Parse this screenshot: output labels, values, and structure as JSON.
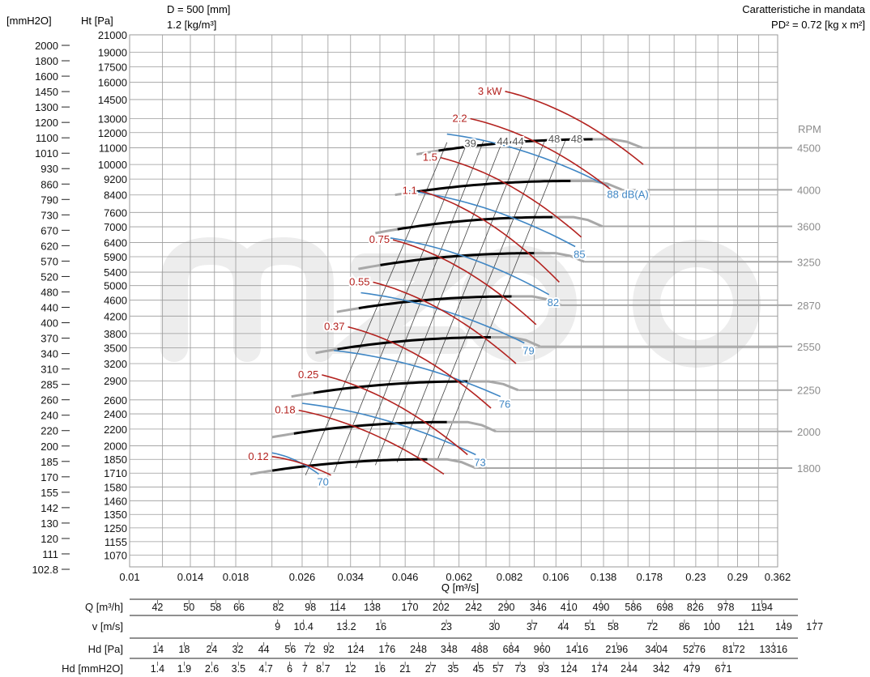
{
  "chart_data": {
    "type": "line",
    "header": {
      "diameter": "D = 500 [mm]",
      "density": "1.2 [kg/m³]",
      "title": "Caratteristiche in mandata",
      "pd2": "PD² = 0.72 [kg x m²]",
      "left_unit": "[mmH2O]",
      "right_unit": "Ht [Pa]",
      "rpm_label": "RPM",
      "xlabel": "Q [m³/s]"
    },
    "x_scale": "log",
    "y_scale": "log",
    "xlim": [
      0.01,
      0.362
    ],
    "ylim": [
      1000,
      21000
    ],
    "x_ticks": [
      {
        "v": 0.01,
        "label": "0.01"
      },
      {
        "v": 0.014,
        "label": "0.014"
      },
      {
        "v": 0.018,
        "label": "0.018"
      },
      {
        "v": 0.026,
        "label": "0.026"
      },
      {
        "v": 0.034,
        "label": "0.034"
      },
      {
        "v": 0.046,
        "label": "0.046"
      },
      {
        "v": 0.062,
        "label": "0.062"
      },
      {
        "v": 0.082,
        "label": "0.082"
      },
      {
        "v": 0.106,
        "label": "0.106"
      },
      {
        "v": 0.138,
        "label": "0.138"
      },
      {
        "v": 0.178,
        "label": "0.178"
      },
      {
        "v": 0.23,
        "label": "0.23"
      },
      {
        "v": 0.29,
        "label": "0.29"
      },
      {
        "v": 0.362,
        "label": "0.362"
      }
    ],
    "x_grid": [
      0.01,
      0.012,
      0.014,
      0.016,
      0.018,
      0.022,
      0.026,
      0.03,
      0.034,
      0.04,
      0.046,
      0.054,
      0.062,
      0.072,
      0.082,
      0.094,
      0.106,
      0.122,
      0.138,
      0.158,
      0.178,
      0.204,
      0.23,
      0.26,
      0.29,
      0.326,
      0.362
    ],
    "y_ticks_pa": [
      {
        "v": 21000,
        "label": "21000"
      },
      {
        "v": 19000,
        "label": "19000"
      },
      {
        "v": 17500,
        "label": "17500"
      },
      {
        "v": 16000,
        "label": "16000"
      },
      {
        "v": 14500,
        "label": "14500"
      },
      {
        "v": 13000,
        "label": "13000"
      },
      {
        "v": 12000,
        "label": "12000"
      },
      {
        "v": 11000,
        "label": "11000"
      },
      {
        "v": 10000,
        "label": "10000"
      },
      {
        "v": 9200,
        "label": "9200"
      },
      {
        "v": 8400,
        "label": "8400"
      },
      {
        "v": 7600,
        "label": "7600"
      },
      {
        "v": 7000,
        "label": "7000"
      },
      {
        "v": 6400,
        "label": "6400"
      },
      {
        "v": 5900,
        "label": "5900"
      },
      {
        "v": 5400,
        "label": "5400"
      },
      {
        "v": 5000,
        "label": "5000"
      },
      {
        "v": 4600,
        "label": "4600"
      },
      {
        "v": 4200,
        "label": "4200"
      },
      {
        "v": 3800,
        "label": "3800"
      },
      {
        "v": 3500,
        "label": "3500"
      },
      {
        "v": 3200,
        "label": "3200"
      },
      {
        "v": 2900,
        "label": "2900"
      },
      {
        "v": 2600,
        "label": "2600"
      },
      {
        "v": 2400,
        "label": "2400"
      },
      {
        "v": 2200,
        "label": "2200"
      },
      {
        "v": 2000,
        "label": "2000"
      },
      {
        "v": 1850,
        "label": "1850"
      },
      {
        "v": 1710,
        "label": "1710"
      },
      {
        "v": 1580,
        "label": "1580"
      },
      {
        "v": 1460,
        "label": "1460"
      },
      {
        "v": 1350,
        "label": "1350"
      },
      {
        "v": 1250,
        "label": "1250"
      },
      {
        "v": 1155,
        "label": "1155"
      },
      {
        "v": 1070,
        "label": "1070"
      }
    ],
    "y_ticks_mmh2o": [
      {
        "v": 2000,
        "label": "2000"
      },
      {
        "v": 1800,
        "label": "1800"
      },
      {
        "v": 1600,
        "label": "1600"
      },
      {
        "v": 1450,
        "label": "1450"
      },
      {
        "v": 1300,
        "label": "1300"
      },
      {
        "v": 1200,
        "label": "1200"
      },
      {
        "v": 1100,
        "label": "1100"
      },
      {
        "v": 1010,
        "label": "1010"
      },
      {
        "v": 930,
        "label": "930"
      },
      {
        "v": 860,
        "label": "860"
      },
      {
        "v": 790,
        "label": "790"
      },
      {
        "v": 730,
        "label": "730"
      },
      {
        "v": 670,
        "label": "670"
      },
      {
        "v": 620,
        "label": "620"
      },
      {
        "v": 570,
        "label": "570"
      },
      {
        "v": 520,
        "label": "520"
      },
      {
        "v": 480,
        "label": "480"
      },
      {
        "v": 440,
        "label": "440"
      },
      {
        "v": 400,
        "label": "400"
      },
      {
        "v": 370,
        "label": "370"
      },
      {
        "v": 340,
        "label": "340"
      },
      {
        "v": 310,
        "label": "310"
      },
      {
        "v": 285,
        "label": "285"
      },
      {
        "v": 260,
        "label": "260"
      },
      {
        "v": 240,
        "label": "240"
      },
      {
        "v": 220,
        "label": "220"
      },
      {
        "v": 200,
        "label": "200"
      },
      {
        "v": 185,
        "label": "185"
      },
      {
        "v": 170,
        "label": "170"
      },
      {
        "v": 155,
        "label": "155"
      },
      {
        "v": 142,
        "label": "142"
      },
      {
        "v": 130,
        "label": "130"
      },
      {
        "v": 120,
        "label": "120"
      },
      {
        "v": 111,
        "label": "111"
      },
      {
        "v": 102.8,
        "label": "102.8"
      }
    ],
    "fan_curves": [
      {
        "rpm": "4500",
        "q0": 0.049,
        "p0": 10600,
        "qpk": 0.13,
        "ppk": 11550,
        "qpeak_end": 0.145,
        "qend": 0.171,
        "pend": 11000
      },
      {
        "rpm": "4000",
        "q0": 0.0435,
        "p0": 8400,
        "qpk": 0.115,
        "ppk": 9100,
        "qpeak_end": 0.13,
        "qend": 0.153,
        "pend": 8650
      },
      {
        "rpm": "3600",
        "q0": 0.039,
        "p0": 6750,
        "qpk": 0.104,
        "ppk": 7400,
        "qpeak_end": 0.117,
        "qend": 0.137,
        "pend": 7020
      },
      {
        "rpm": "3250",
        "q0": 0.0355,
        "p0": 5500,
        "qpk": 0.094,
        "ppk": 6020,
        "qpeak_end": 0.106,
        "qend": 0.124,
        "pend": 5730
      },
      {
        "rpm": "2870",
        "q0": 0.0315,
        "p0": 4300,
        "qpk": 0.083,
        "ppk": 4700,
        "qpeak_end": 0.093,
        "qend": 0.109,
        "pend": 4470
      },
      {
        "rpm": "2550",
        "q0": 0.028,
        "p0": 3400,
        "qpk": 0.074,
        "ppk": 3720,
        "qpeak_end": 0.083,
        "qend": 0.097,
        "pend": 3530
      },
      {
        "rpm": "2250",
        "q0": 0.0245,
        "p0": 2650,
        "qpk": 0.065,
        "ppk": 2890,
        "qpeak_end": 0.073,
        "qend": 0.086,
        "pend": 2750
      },
      {
        "rpm": "2000",
        "q0": 0.022,
        "p0": 2100,
        "qpk": 0.058,
        "ppk": 2290,
        "qpeak_end": 0.065,
        "qend": 0.076,
        "pend": 2170
      },
      {
        "rpm": "1800",
        "q0": 0.0195,
        "p0": 1700,
        "qpk": 0.052,
        "ppk": 1850,
        "qpeak_end": 0.058,
        "qend": 0.068,
        "pend": 1760
      }
    ],
    "power_curves": [
      {
        "label": "3 kW",
        "q0": 0.08,
        "p0": 15200,
        "q1": 0.172,
        "p1": 10000
      },
      {
        "label": "2.2",
        "q0": 0.066,
        "p0": 13000,
        "q1": 0.145,
        "p1": 8600
      },
      {
        "label": "1.5",
        "q0": 0.056,
        "p0": 10400,
        "q1": 0.122,
        "p1": 6600
      },
      {
        "label": "1.1",
        "q0": 0.05,
        "p0": 8600,
        "q1": 0.108,
        "p1": 5100
      },
      {
        "label": "0.75",
        "q0": 0.043,
        "p0": 6500,
        "q1": 0.095,
        "p1": 4000
      },
      {
        "label": "0.55",
        "q0": 0.0385,
        "p0": 5100,
        "q1": 0.085,
        "p1": 3200
      },
      {
        "label": "0.37",
        "q0": 0.0335,
        "p0": 3950,
        "q1": 0.074,
        "p1": 2480
      },
      {
        "label": "0.25",
        "q0": 0.029,
        "p0": 3000,
        "q1": 0.065,
        "p1": 1900
      },
      {
        "label": "0.18",
        "q0": 0.0255,
        "p0": 2450,
        "q1": 0.057,
        "p1": 1700
      },
      {
        "label": "0.12",
        "q0": 0.022,
        "p0": 1880,
        "q1": 0.0305,
        "p1": 1690
      }
    ],
    "noise_curves": [
      {
        "label": "88 dB(A)",
        "q0": 0.058,
        "p0": 11900,
        "q1": 0.142,
        "p1": 8800
      },
      {
        "label": "85",
        "q0": 0.047,
        "p0": 8600,
        "q1": 0.118,
        "p1": 6250
      },
      {
        "label": "82",
        "q0": 0.041,
        "p0": 6600,
        "q1": 0.102,
        "p1": 4750
      },
      {
        "label": "79",
        "q0": 0.036,
        "p0": 4800,
        "q1": 0.089,
        "p1": 3600
      },
      {
        "label": "76",
        "q0": 0.031,
        "p0": 3450,
        "q1": 0.078,
        "p1": 2650
      },
      {
        "label": "73",
        "q0": 0.026,
        "p0": 2550,
        "q1": 0.068,
        "p1": 1900
      },
      {
        "label": "70",
        "q0": 0.022,
        "p0": 1920,
        "q1": 0.0285,
        "p1": 1700
      }
    ],
    "efficiency_labels": [
      "39",
      "44",
      "44",
      "48",
      "48"
    ],
    "bottom_table": [
      {
        "label": "Q [m³/h]",
        "values": [
          {
            "q": 0.01167,
            "t": "42"
          },
          {
            "q": 0.01389,
            "t": "50"
          },
          {
            "q": 0.01611,
            "t": "58"
          },
          {
            "q": 0.01833,
            "t": "66"
          },
          {
            "q": 0.02278,
            "t": "82"
          },
          {
            "q": 0.02722,
            "t": "98"
          },
          {
            "q": 0.03167,
            "t": "114"
          },
          {
            "q": 0.03833,
            "t": "138"
          },
          {
            "q": 0.04722,
            "t": "170"
          },
          {
            "q": 0.05611,
            "t": "202"
          },
          {
            "q": 0.06722,
            "t": "242"
          },
          {
            "q": 0.08056,
            "t": "290"
          },
          {
            "q": 0.09611,
            "t": "346"
          },
          {
            "q": 0.11389,
            "t": "410"
          },
          {
            "q": 0.13611,
            "t": "490"
          },
          {
            "q": 0.16278,
            "t": "586"
          },
          {
            "q": 0.19389,
            "t": "698"
          },
          {
            "q": 0.22944,
            "t": "826"
          },
          {
            "q": 0.27167,
            "t": "978"
          },
          {
            "q": 0.33167,
            "t": "1194"
          }
        ]
      },
      {
        "label": "v [m/s]",
        "values": [
          {
            "q": 0.0227,
            "t": "9"
          },
          {
            "q": 0.0262,
            "t": "10.4"
          },
          {
            "q": 0.0332,
            "t": "13.2"
          },
          {
            "q": 0.0402,
            "t": "16"
          },
          {
            "q": 0.0578,
            "t": "23"
          },
          {
            "q": 0.0754,
            "t": "30"
          },
          {
            "q": 0.0929,
            "t": "37"
          },
          {
            "q": 0.1105,
            "t": "44"
          },
          {
            "q": 0.128,
            "t": "51"
          },
          {
            "q": 0.1456,
            "t": "58"
          },
          {
            "q": 0.1808,
            "t": "72"
          },
          {
            "q": 0.216,
            "t": "86"
          },
          {
            "q": 0.2512,
            "t": "100"
          },
          {
            "q": 0.3039,
            "t": "121"
          },
          {
            "q": 0.3742,
            "t": "149"
          },
          {
            "q": 0.4443,
            "t": "177"
          }
        ]
      },
      {
        "label": "Hd [Pa]",
        "values": [
          {
            "q": 0.01171,
            "t": "14"
          },
          {
            "q": 0.01353,
            "t": "18"
          },
          {
            "q": 0.01576,
            "t": "24"
          },
          {
            "q": 0.0182,
            "t": "32"
          },
          {
            "q": 0.02103,
            "t": "44"
          },
          {
            "q": 0.02435,
            "t": "56"
          },
          {
            "q": 0.02711,
            "t": "72"
          },
          {
            "q": 0.03014,
            "t": "92"
          },
          {
            "q": 0.035,
            "t": "124"
          },
          {
            "q": 0.0416,
            "t": "176"
          },
          {
            "q": 0.04951,
            "t": "248"
          },
          {
            "q": 0.05866,
            "t": "348"
          },
          {
            "q": 0.0695,
            "t": "488"
          },
          {
            "q": 0.08275,
            "t": "684"
          },
          {
            "q": 0.0982,
            "t": "960"
          },
          {
            "q": 0.11917,
            "t": "1416"
          },
          {
            "q": 0.14847,
            "t": "2196"
          },
          {
            "q": 0.18493,
            "t": "3404"
          },
          {
            "q": 0.22814,
            "t": "5276"
          },
          {
            "q": 0.28383,
            "t": "8172"
          },
          {
            "q": 0.35358,
            "t": "13316"
          }
        ]
      },
      {
        "label": "Hd [mmH2O]",
        "values": [
          {
            "q": 0.01167,
            "t": "1.4"
          },
          {
            "q": 0.01353,
            "t": "1.9"
          },
          {
            "q": 0.01577,
            "t": "2.6"
          },
          {
            "q": 0.01827,
            "t": "3.5"
          },
          {
            "q": 0.02126,
            "t": "4.7"
          },
          {
            "q": 0.02427,
            "t": "6"
          },
          {
            "q": 0.0264,
            "t": "7"
          },
          {
            "q": 0.0292,
            "t": "8.7"
          },
          {
            "q": 0.03397,
            "t": "12"
          },
          {
            "q": 0.04,
            "t": "16"
          },
          {
            "q": 0.046,
            "t": "21"
          },
          {
            "q": 0.053,
            "t": "27"
          },
          {
            "q": 0.06,
            "t": "35"
          },
          {
            "q": 0.069,
            "t": "45"
          },
          {
            "q": 0.077,
            "t": "57"
          },
          {
            "q": 0.087,
            "t": "73"
          },
          {
            "q": 0.099,
            "t": "93"
          },
          {
            "q": 0.114,
            "t": "124"
          },
          {
            "q": 0.135,
            "t": "174"
          },
          {
            "q": 0.159,
            "t": "244"
          },
          {
            "q": 0.19,
            "t": "342"
          },
          {
            "q": 0.225,
            "t": "479"
          },
          {
            "q": 0.268,
            "t": "671"
          }
        ]
      }
    ],
    "colors": {
      "grid": "#9a9a9a",
      "fan_curve": "#000000",
      "fan_curve_stall": "#a8a8a8",
      "power": "#b3221f",
      "noise": "#3f86c4",
      "efficiency": "#555555",
      "rpm_text": "#8c8c8c",
      "watermark": "#ededed"
    },
    "watermark": "mz"
  }
}
